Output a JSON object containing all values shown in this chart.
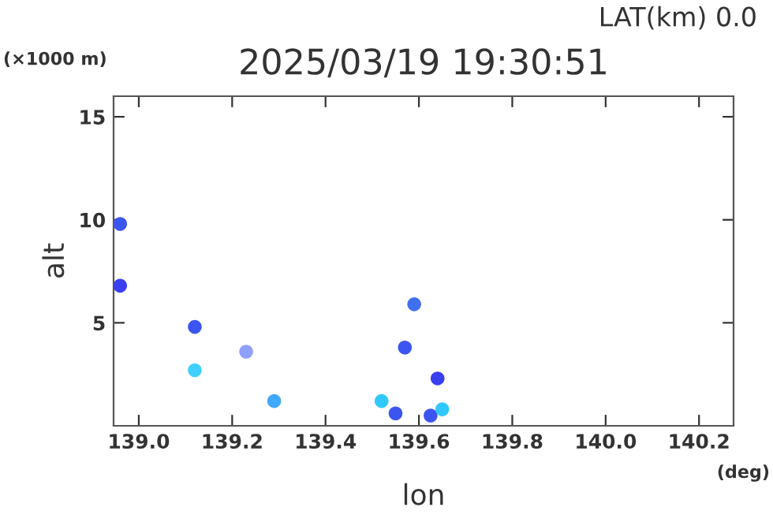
{
  "chart_data": {
    "type": "scatter",
    "title": "2025/03/19 19:30:51",
    "xlabel": "lon",
    "ylabel": "alt",
    "annotations": [
      "LAT(km) 0.0",
      "(×1000 m)",
      "(deg)"
    ],
    "x": [
      138.96,
      138.96,
      139.12,
      139.12,
      139.23,
      139.29,
      139.52,
      139.55,
      139.57,
      139.59,
      139.625,
      139.64,
      139.65
    ],
    "values": [
      9.8,
      6.8,
      4.8,
      2.7,
      3.6,
      1.2,
      1.2,
      0.6,
      3.8,
      5.9,
      0.5,
      2.3,
      0.8
    ],
    "colors": [
      "#3d55f0",
      "#3a3ff0",
      "#3d55f0",
      "#40d0ff",
      "#8fa0ff",
      "#40a8ff",
      "#30c8ff",
      "#3d55f0",
      "#3d55f0",
      "#4070f0",
      "#3d55f0",
      "#3a3ff0",
      "#30c8ff"
    ],
    "marker": "circle",
    "grid": false,
    "legend": false,
    "xlim": [
      138.946,
      140.274
    ],
    "xticks": [
      {
        "value": 139.0,
        "label": "139.0"
      },
      {
        "value": 139.2,
        "label": "139.2"
      },
      {
        "value": 139.4,
        "label": "139.4"
      },
      {
        "value": 139.6,
        "label": "139.6"
      },
      {
        "value": 139.8,
        "label": "139.8"
      },
      {
        "value": 140.0,
        "label": "140.0"
      },
      {
        "value": 140.2,
        "label": "140.2"
      }
    ],
    "ylim": [
      0,
      16
    ],
    "yticks": [
      5,
      10,
      15
    ]
  }
}
